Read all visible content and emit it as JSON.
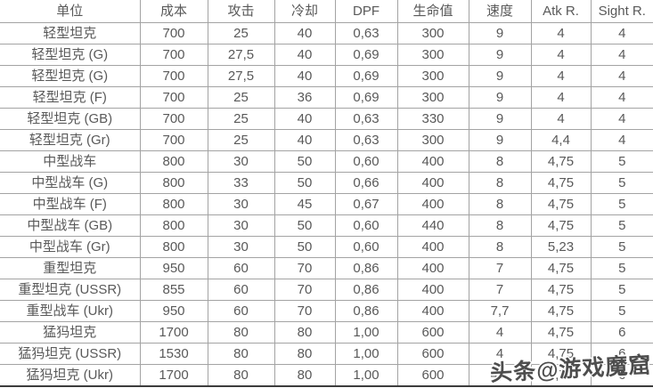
{
  "chart_data": {
    "type": "table",
    "title": "",
    "columns": [
      {
        "key": "unit",
        "label": "单位",
        "width": 157
      },
      {
        "key": "cost",
        "label": "成本",
        "width": 76
      },
      {
        "key": "attack",
        "label": "攻击",
        "width": 75
      },
      {
        "key": "cooldown",
        "label": "冷却",
        "width": 68
      },
      {
        "key": "dpf",
        "label": "DPF",
        "width": 70
      },
      {
        "key": "hp",
        "label": "生命值",
        "width": 80
      },
      {
        "key": "speed",
        "label": "速度",
        "width": 70
      },
      {
        "key": "atk_range",
        "label": "Atk R.",
        "width": 67
      },
      {
        "key": "sight_range",
        "label": "Sight R.",
        "width": 70
      }
    ],
    "rows": [
      [
        "轻型坦克",
        "700",
        "25",
        "40",
        "0,63",
        "300",
        "9",
        "4",
        "4"
      ],
      [
        "轻型坦克 (G)",
        "700",
        "27,5",
        "40",
        "0,69",
        "300",
        "9",
        "4",
        "4"
      ],
      [
        "轻型坦克 (G)",
        "700",
        "27,5",
        "40",
        "0,69",
        "300",
        "9",
        "4",
        "4"
      ],
      [
        "轻型坦克 (F)",
        "700",
        "25",
        "36",
        "0,69",
        "300",
        "9",
        "4",
        "4"
      ],
      [
        "轻型坦克 (GB)",
        "700",
        "25",
        "40",
        "0,63",
        "330",
        "9",
        "4",
        "4"
      ],
      [
        "轻型坦克 (Gr)",
        "700",
        "25",
        "40",
        "0,63",
        "300",
        "9",
        "4,4",
        "4"
      ],
      [
        "中型战车",
        "800",
        "30",
        "50",
        "0,60",
        "400",
        "8",
        "4,75",
        "5"
      ],
      [
        "中型战车 (G)",
        "800",
        "33",
        "50",
        "0,66",
        "400",
        "8",
        "4,75",
        "5"
      ],
      [
        "中型战车 (F)",
        "800",
        "30",
        "45",
        "0,67",
        "400",
        "8",
        "4,75",
        "5"
      ],
      [
        "中型战车 (GB)",
        "800",
        "30",
        "50",
        "0,60",
        "440",
        "8",
        "4,75",
        "5"
      ],
      [
        "中型战车 (Gr)",
        "800",
        "30",
        "50",
        "0,60",
        "400",
        "8",
        "5,23",
        "5"
      ],
      [
        "重型坦克",
        "950",
        "60",
        "70",
        "0,86",
        "400",
        "7",
        "4,75",
        "5"
      ],
      [
        "重型坦克 (USSR)",
        "855",
        "60",
        "70",
        "0,86",
        "400",
        "7",
        "4,75",
        "5"
      ],
      [
        "重型战车 (Ukr)",
        "950",
        "60",
        "70",
        "0,86",
        "400",
        "7,7",
        "4,75",
        "5"
      ],
      [
        "猛犸坦克",
        "1700",
        "80",
        "80",
        "1,00",
        "600",
        "4",
        "4,75",
        "6"
      ],
      [
        "猛犸坦克 (USSR)",
        "1530",
        "80",
        "80",
        "1,00",
        "600",
        "4",
        "4,75",
        "6"
      ],
      [
        "猛犸坦克 (Ukr)",
        "1700",
        "80",
        "80",
        "1,00",
        "600",
        "4,4",
        "4,75",
        "6"
      ]
    ],
    "layout_hints": {
      "grid": "all-borders",
      "outer_left_right_border": false,
      "outer_top_border": false,
      "bottom_border_thick": true,
      "cell_alignment": "center"
    }
  },
  "watermark": {
    "text": "头条@游戏魔窟"
  },
  "colors": {
    "text": "#595959",
    "gridline": "#a3a3a3",
    "bottom_border": "#3b3b3b",
    "background": "#ffffff",
    "watermark_fill": "#4d4d4d",
    "watermark_outline": "#ffffff"
  }
}
